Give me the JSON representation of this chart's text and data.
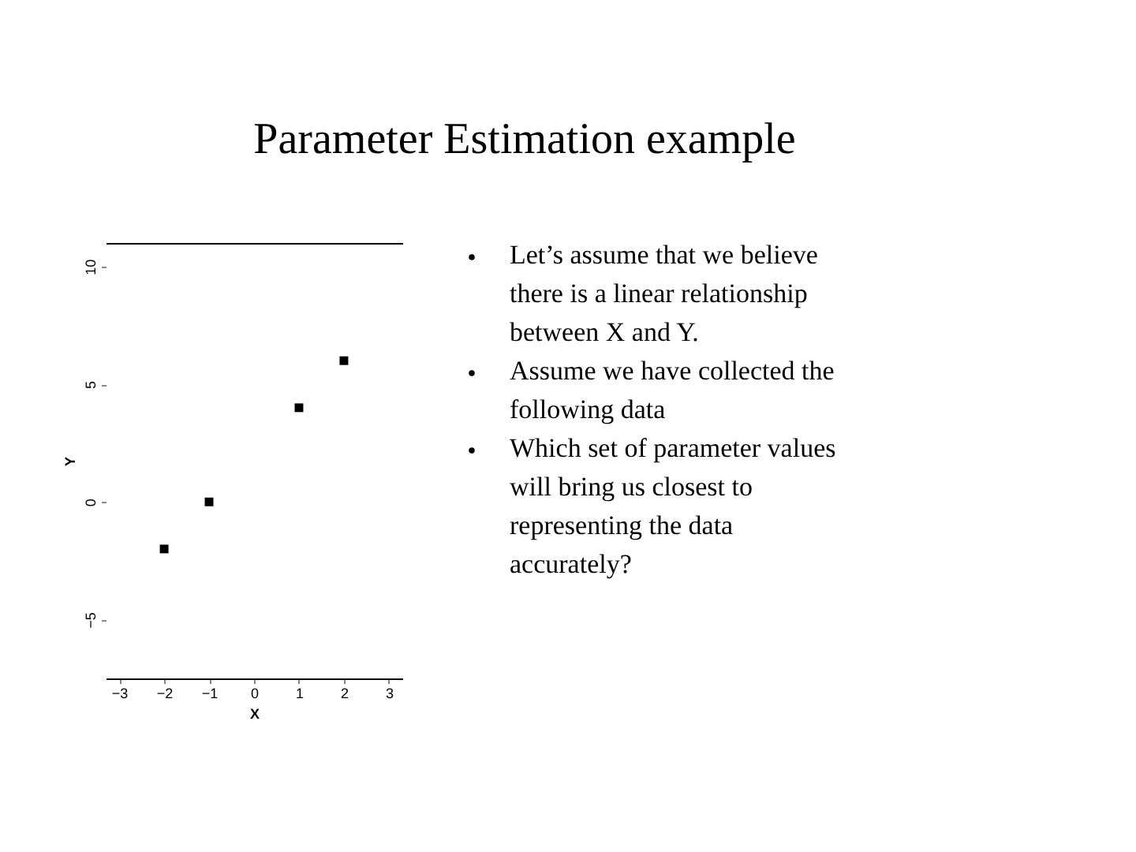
{
  "chart_data": {
    "type": "scatter",
    "title": "Parameter Estimation example",
    "xlabel": "X",
    "ylabel": "Y",
    "x": [
      -2,
      -1,
      1,
      2
    ],
    "series": [
      {
        "color": "#000000",
        "values": [
          -2,
          0,
          4,
          6
        ]
      }
    ],
    "xlim": [
      -3.3,
      3.3
    ],
    "xticks": [
      -3,
      -2,
      -1,
      0,
      1,
      2,
      3
    ],
    "ylim": [
      -7.5,
      11
    ],
    "yticks": [
      -5,
      0,
      5,
      10
    ],
    "grid": false,
    "legend": false,
    "marker": "square",
    "annotations": [
      "Let’s assume that we believe there is a linear relationship between X and Y.",
      "Assume we have collected the following data",
      "Which set of parameter values will bring us closest to representing the data accurately?"
    ]
  }
}
